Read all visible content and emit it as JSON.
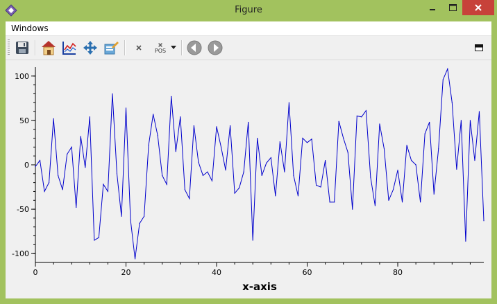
{
  "window": {
    "title": "Figure",
    "minimize_icon": "minimize-icon",
    "maximize_icon": "maximize-icon",
    "close_icon": "close-icon",
    "close_color": "#c7423a",
    "frame_color": "#a2c25e"
  },
  "menu": {
    "items": [
      "Windows"
    ]
  },
  "toolbar": {
    "buttons": [
      {
        "name": "save-button",
        "icon": "floppy-disk-icon"
      },
      {
        "name": "home-button",
        "icon": "home-icon"
      },
      {
        "name": "autoscale-button",
        "icon": "chart-axes-icon"
      },
      {
        "name": "pan-button",
        "icon": "move-arrows-icon"
      },
      {
        "name": "configure-button",
        "icon": "edit-settings-icon"
      },
      {
        "name": "cursor-button",
        "icon": "cross-icon"
      },
      {
        "name": "pos-button",
        "icon": "pos-icon",
        "label": "POS"
      },
      {
        "name": "back-button",
        "icon": "arrow-left-circle-icon"
      },
      {
        "name": "forward-button",
        "icon": "arrow-right-circle-icon"
      },
      {
        "name": "dock-button",
        "icon": "dock-window-icon"
      }
    ]
  },
  "chart_data": {
    "type": "line",
    "xlabel": "x-axis",
    "ylabel": "",
    "title": "",
    "xlim": [
      0,
      99
    ],
    "ylim": [
      -110,
      110
    ],
    "xticks": [
      0,
      20,
      40,
      60,
      80
    ],
    "yticks": [
      100,
      50,
      0,
      -50,
      -100
    ],
    "grid": false,
    "line_color": "#0000cc",
    "x": [
      0,
      1,
      2,
      3,
      4,
      5,
      6,
      7,
      8,
      9,
      10,
      11,
      12,
      13,
      14,
      15,
      16,
      17,
      18,
      19,
      20,
      21,
      22,
      23,
      24,
      25,
      26,
      27,
      28,
      29,
      30,
      31,
      32,
      33,
      34,
      35,
      36,
      37,
      38,
      39,
      40,
      41,
      42,
      43,
      44,
      45,
      46,
      47,
      48,
      49,
      50,
      51,
      52,
      53,
      54,
      55,
      56,
      57,
      58,
      59,
      60,
      61,
      62,
      63,
      64,
      65,
      66,
      67,
      68,
      69,
      70,
      71,
      72,
      73,
      74,
      75,
      76,
      77,
      78,
      79,
      80,
      81,
      82,
      83,
      84,
      85,
      86,
      87,
      88,
      89,
      90,
      91,
      92,
      93,
      94,
      95,
      96,
      97,
      98,
      99
    ],
    "series": [
      {
        "values": [
          -2,
          5,
          -30,
          -20,
          52,
          -12,
          -28,
          12,
          20,
          -48,
          32,
          -3,
          54,
          -85,
          -82,
          -22,
          -30,
          80,
          -10,
          -58,
          64,
          -62,
          -106,
          -66,
          -58,
          22,
          57,
          33,
          -12,
          -22,
          77,
          15,
          54,
          -28,
          -38,
          44,
          3,
          -12,
          -8,
          -18,
          43,
          20,
          -6,
          44,
          -32,
          -26,
          -8,
          48,
          -85,
          30,
          -12,
          2,
          8,
          -35,
          26,
          -8,
          70,
          -12,
          -35,
          30,
          25,
          29,
          -23,
          -25,
          5,
          -42,
          -42,
          49,
          30,
          14,
          -50,
          55,
          54,
          61,
          -14,
          -46,
          46,
          18,
          -40,
          -28,
          -6,
          -42,
          22,
          5,
          0,
          -42,
          35,
          48,
          -33,
          18,
          96,
          108,
          70,
          -5,
          50,
          -86,
          50,
          5,
          60,
          -63
        ]
      }
    ]
  }
}
